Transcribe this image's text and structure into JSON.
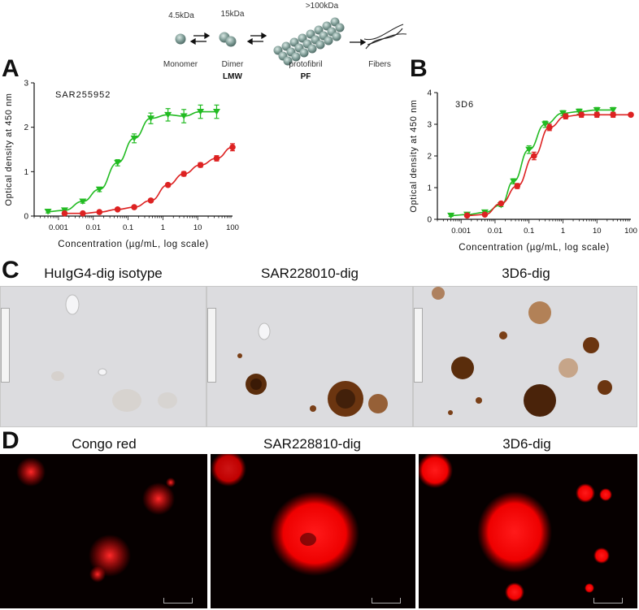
{
  "schema": {
    "monomer_mass": "4.5kDa",
    "dimer_mass": "15kDa",
    "protofibril_mass": ">100kDa",
    "monomer_label": "Monomer",
    "dimer_label": "Dimer",
    "protofibril_label": "protofibril",
    "fibers_label": "Fibers",
    "lmw_label": "LMW",
    "pf_label": "PF"
  },
  "panels": {
    "a": "A",
    "b": "B",
    "c": "C",
    "d": "D"
  },
  "chart_data": [
    {
      "type": "scatter",
      "title": "SAR255952",
      "xlabel": "Concentration (µg/mL, log scale)",
      "ylabel": "Optical density at 450 nm",
      "xscale": "log",
      "xlim": [
        0.0002,
        100
      ],
      "ylim": [
        0,
        3
      ],
      "xticks": [
        "0.001",
        "0.01",
        "0.1",
        "1",
        "10",
        "100"
      ],
      "yticks": [
        "0",
        "1",
        "2",
        "3"
      ],
      "grid": false,
      "series": [
        {
          "marker": "triangle-down",
          "color": "#22bb22",
          "x": [
            0.0005,
            0.0015,
            0.005,
            0.015,
            0.05,
            0.15,
            0.45,
            1.4,
            4,
            12,
            35
          ],
          "y": [
            0.1,
            0.13,
            0.33,
            0.6,
            1.2,
            1.75,
            2.2,
            2.28,
            2.25,
            2.35,
            2.35
          ],
          "err": [
            0.03,
            0.03,
            0.04,
            0.05,
            0.07,
            0.1,
            0.12,
            0.14,
            0.15,
            0.15,
            0.15
          ]
        },
        {
          "marker": "circle",
          "color": "#dd2222",
          "x": [
            0.0015,
            0.005,
            0.015,
            0.05,
            0.15,
            0.45,
            1.4,
            4,
            12,
            35,
            100
          ],
          "y": [
            0.06,
            0.06,
            0.09,
            0.15,
            0.2,
            0.35,
            0.7,
            0.95,
            1.15,
            1.3,
            1.55
          ],
          "err": [
            0.02,
            0.02,
            0.02,
            0.02,
            0.03,
            0.03,
            0.04,
            0.05,
            0.05,
            0.06,
            0.08
          ]
        }
      ]
    },
    {
      "type": "scatter",
      "title": "3D6",
      "xlabel": "Concentration (µg/mL, log scale)",
      "ylabel": "Optical density at 450 nm",
      "xscale": "log",
      "xlim": [
        0.0002,
        100
      ],
      "ylim": [
        0,
        4
      ],
      "xticks": [
        "0.001",
        "0.01",
        "0.1",
        "1",
        "10",
        "100"
      ],
      "yticks": [
        "0",
        "1",
        "2",
        "3",
        "4"
      ],
      "grid": false,
      "series": [
        {
          "marker": "triangle-down",
          "color": "#22bb22",
          "x": [
            0.0005,
            0.0015,
            0.005,
            0.015,
            0.035,
            0.1,
            0.3,
            1,
            3,
            10,
            30
          ],
          "y": [
            0.12,
            0.15,
            0.22,
            0.45,
            1.2,
            2.2,
            3.0,
            3.35,
            3.4,
            3.45,
            3.45
          ],
          "err": [
            0.03,
            0.03,
            0.04,
            0.05,
            0.08,
            0.12,
            0.1,
            0.08,
            0.08,
            0.08,
            0.08
          ]
        },
        {
          "marker": "circle",
          "color": "#dd2222",
          "x": [
            0.0015,
            0.005,
            0.015,
            0.045,
            0.14,
            0.4,
            1.2,
            3.5,
            10,
            30,
            100
          ],
          "y": [
            0.12,
            0.15,
            0.5,
            1.05,
            2.0,
            2.9,
            3.25,
            3.3,
            3.3,
            3.3,
            3.3
          ],
          "err": [
            0.03,
            0.03,
            0.05,
            0.08,
            0.12,
            0.1,
            0.08,
            0.08,
            0.08,
            0.08,
            0.05
          ]
        }
      ]
    }
  ],
  "histology": {
    "titles": [
      "HuIgG4-dig isotype",
      "SAR228010-dig",
      "3D6-dig"
    ]
  },
  "fluorescence": {
    "titles": [
      "Congo red",
      "SAR228810-dig",
      "3D6-dig"
    ]
  }
}
